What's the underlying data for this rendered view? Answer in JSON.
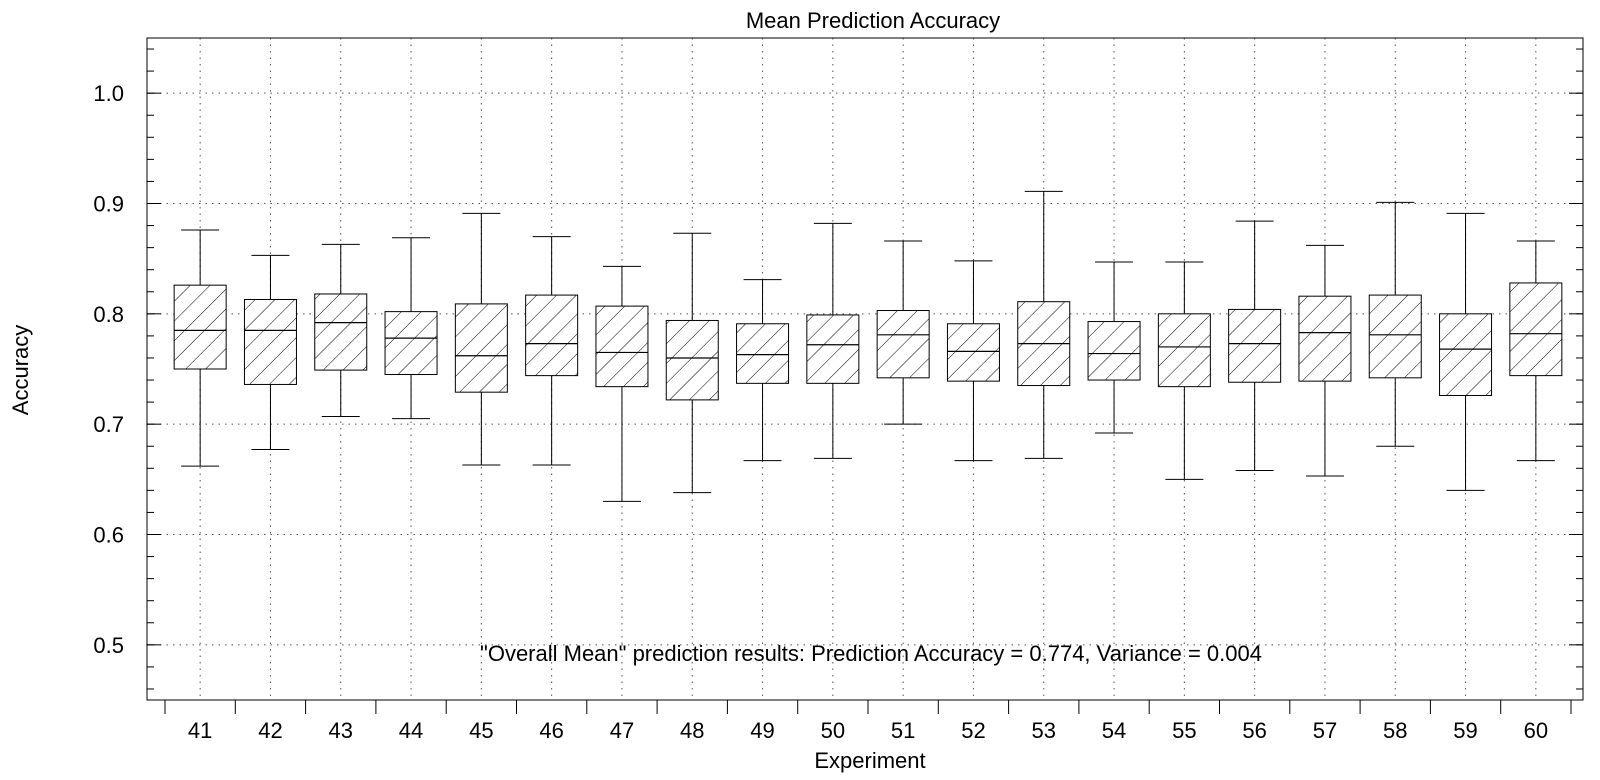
{
  "chart_data": {
    "type": "box",
    "title": "Mean Prediction Accuracy",
    "xlabel": "Experiment",
    "ylabel": "Accuracy",
    "ylim": [
      0.45,
      1.05
    ],
    "yticks": [
      "0.5",
      "0.6",
      "0.7",
      "0.8",
      "0.9",
      "1.0"
    ],
    "grid": true,
    "fill_pattern": "diagonal-hatch",
    "annotation": "\"Overall Mean\" prediction results: Prediction Accuracy = 0.774, Variance = 0.004",
    "categories": [
      "41",
      "42",
      "43",
      "44",
      "45",
      "46",
      "47",
      "48",
      "49",
      "50",
      "51",
      "52",
      "53",
      "54",
      "55",
      "56",
      "57",
      "58",
      "59",
      "60"
    ],
    "boxes": [
      {
        "label": "41",
        "min": 0.662,
        "q1": 0.75,
        "median": 0.785,
        "q3": 0.826,
        "max": 0.876
      },
      {
        "label": "42",
        "min": 0.677,
        "q1": 0.736,
        "median": 0.785,
        "q3": 0.813,
        "max": 0.853
      },
      {
        "label": "43",
        "min": 0.707,
        "q1": 0.749,
        "median": 0.792,
        "q3": 0.818,
        "max": 0.863
      },
      {
        "label": "44",
        "min": 0.705,
        "q1": 0.745,
        "median": 0.778,
        "q3": 0.802,
        "max": 0.869
      },
      {
        "label": "45",
        "min": 0.663,
        "q1": 0.729,
        "median": 0.762,
        "q3": 0.809,
        "max": 0.891
      },
      {
        "label": "46",
        "min": 0.663,
        "q1": 0.744,
        "median": 0.773,
        "q3": 0.817,
        "max": 0.87
      },
      {
        "label": "47",
        "min": 0.63,
        "q1": 0.734,
        "median": 0.765,
        "q3": 0.807,
        "max": 0.843
      },
      {
        "label": "48",
        "min": 0.638,
        "q1": 0.722,
        "median": 0.76,
        "q3": 0.794,
        "max": 0.873
      },
      {
        "label": "49",
        "min": 0.667,
        "q1": 0.737,
        "median": 0.763,
        "q3": 0.791,
        "max": 0.831
      },
      {
        "label": "50",
        "min": 0.669,
        "q1": 0.737,
        "median": 0.772,
        "q3": 0.799,
        "max": 0.882
      },
      {
        "label": "51",
        "min": 0.7,
        "q1": 0.742,
        "median": 0.781,
        "q3": 0.803,
        "max": 0.866
      },
      {
        "label": "52",
        "min": 0.667,
        "q1": 0.739,
        "median": 0.766,
        "q3": 0.791,
        "max": 0.848
      },
      {
        "label": "53",
        "min": 0.669,
        "q1": 0.735,
        "median": 0.773,
        "q3": 0.811,
        "max": 0.911
      },
      {
        "label": "54",
        "min": 0.692,
        "q1": 0.74,
        "median": 0.764,
        "q3": 0.793,
        "max": 0.847
      },
      {
        "label": "55",
        "min": 0.65,
        "q1": 0.734,
        "median": 0.77,
        "q3": 0.8,
        "max": 0.847
      },
      {
        "label": "56",
        "min": 0.658,
        "q1": 0.738,
        "median": 0.773,
        "q3": 0.804,
        "max": 0.884
      },
      {
        "label": "57",
        "min": 0.653,
        "q1": 0.739,
        "median": 0.783,
        "q3": 0.816,
        "max": 0.862
      },
      {
        "label": "58",
        "min": 0.68,
        "q1": 0.742,
        "median": 0.781,
        "q3": 0.817,
        "max": 0.901
      },
      {
        "label": "59",
        "min": 0.64,
        "q1": 0.726,
        "median": 0.768,
        "q3": 0.8,
        "max": 0.891
      },
      {
        "label": "60",
        "min": 0.667,
        "q1": 0.744,
        "median": 0.782,
        "q3": 0.828,
        "max": 0.866
      }
    ]
  }
}
